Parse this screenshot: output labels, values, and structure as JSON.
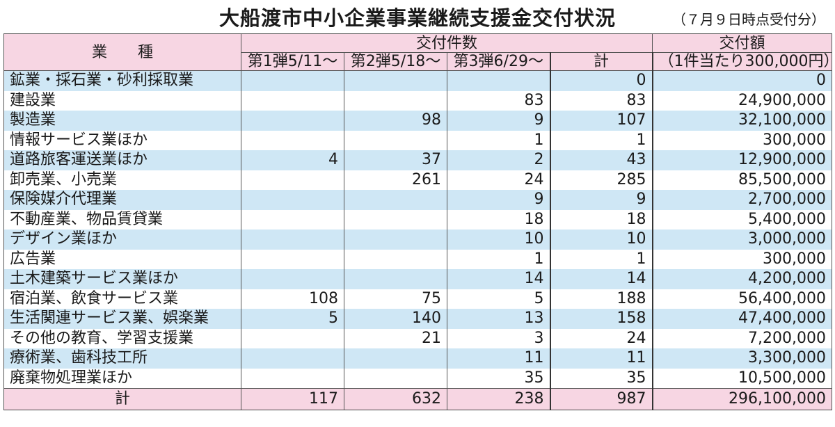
{
  "title": "大船渡市中小企業事業継続支援金交付状況",
  "note": "（７月９日時点受付分）",
  "header": {
    "category": "業　　種",
    "count_group": "交付件数",
    "round1": "第1弾5/11～",
    "round2": "第2弾5/18～",
    "round3": "第3弾6/29～",
    "count_total": "計",
    "amount_line1": "交付額",
    "amount_line2": "（1件当たり300,000円）"
  },
  "rows": [
    {
      "name": "鉱業・採石業・砂利採取業",
      "r1": "",
      "r2": "",
      "r3": "",
      "total": "0",
      "amount": "0"
    },
    {
      "name": "建設業",
      "r1": "",
      "r2": "",
      "r3": "83",
      "total": "83",
      "amount": "24,900,000"
    },
    {
      "name": "製造業",
      "r1": "",
      "r2": "98",
      "r3": "9",
      "total": "107",
      "amount": "32,100,000"
    },
    {
      "name": "情報サービス業ほか",
      "r1": "",
      "r2": "",
      "r3": "1",
      "total": "1",
      "amount": "300,000"
    },
    {
      "name": "道路旅客運送業ほか",
      "r1": "4",
      "r2": "37",
      "r3": "2",
      "total": "43",
      "amount": "12,900,000"
    },
    {
      "name": "卸売業、小売業",
      "r1": "",
      "r2": "261",
      "r3": "24",
      "total": "285",
      "amount": "85,500,000"
    },
    {
      "name": "保険媒介代理業",
      "r1": "",
      "r2": "",
      "r3": "9",
      "total": "9",
      "amount": "2,700,000"
    },
    {
      "name": "不動産業、物品賃貸業",
      "r1": "",
      "r2": "",
      "r3": "18",
      "total": "18",
      "amount": "5,400,000"
    },
    {
      "name": "デザイン業ほか",
      "r1": "",
      "r2": "",
      "r3": "10",
      "total": "10",
      "amount": "3,000,000"
    },
    {
      "name": "広告業",
      "r1": "",
      "r2": "",
      "r3": "1",
      "total": "1",
      "amount": "300,000"
    },
    {
      "name": "土木建築サービス業ほか",
      "r1": "",
      "r2": "",
      "r3": "14",
      "total": "14",
      "amount": "4,200,000"
    },
    {
      "name": "宿泊業、飲食サービス業",
      "r1": "108",
      "r2": "75",
      "r3": "5",
      "total": "188",
      "amount": "56,400,000"
    },
    {
      "name": "生活関連サービス業、娯楽業",
      "r1": "5",
      "r2": "140",
      "r3": "13",
      "total": "158",
      "amount": "47,400,000"
    },
    {
      "name": "その他の教育、学習支援業",
      "r1": "",
      "r2": "21",
      "r3": "3",
      "total": "24",
      "amount": "7,200,000"
    },
    {
      "name": "療術業、歯科技工所",
      "r1": "",
      "r2": "",
      "r3": "11",
      "total": "11",
      "amount": "3,300,000"
    },
    {
      "name": "廃棄物処理業ほか",
      "r1": "",
      "r2": "",
      "r3": "35",
      "total": "35",
      "amount": "10,500,000"
    }
  ],
  "totals": {
    "name": "計",
    "r1": "117",
    "r2": "632",
    "r3": "238",
    "total": "987",
    "amount": "296,100,000"
  },
  "colors": {
    "header_pink": "#f7d6e3",
    "stripe_blue": "#cfe7f5"
  }
}
